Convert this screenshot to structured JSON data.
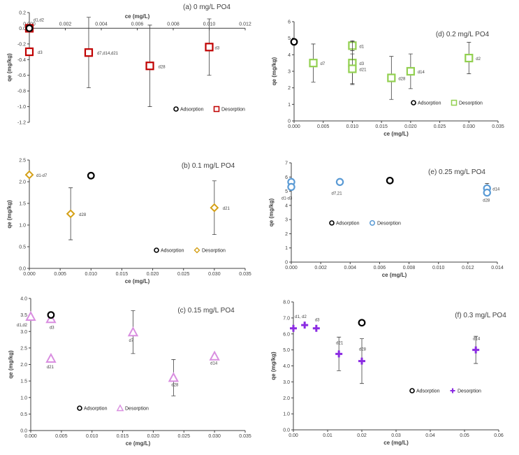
{
  "chart_data": [
    {
      "type": "scatter",
      "title": "(a) 0 mg/L PO4",
      "xlabel": "ce (mg/L)",
      "ylabel": "qe (mg/kg)",
      "xlim": [
        0,
        0.012
      ],
      "ylim": [
        -1.2,
        0.2
      ],
      "xticks": [
        0,
        0.002,
        0.004,
        0.006,
        0.008,
        0.01,
        0.012
      ],
      "yticks": [
        -1.2,
        -1.0,
        -0.8,
        -0.6,
        -0.4,
        -0.2,
        0.0,
        0.2
      ],
      "xtick_labels": [
        "0.000",
        "0.002",
        "0.004",
        "0.006",
        "0.008",
        "0.010",
        "0.012"
      ],
      "ytick_labels": [
        "-1.2",
        "-1.0",
        "-0.8",
        "-0.6",
        "-0.4",
        "-0.2",
        "0.0",
        "0.2"
      ],
      "x_axis_at_zero": true,
      "legend_position": "bottom-right",
      "color": "#c00000",
      "marker": "square",
      "series": [
        {
          "name": "Adsorption",
          "points": [
            {
              "x": 0.0,
              "y": 0.0
            }
          ]
        },
        {
          "name": "Desorption",
          "points": [
            {
              "x": 0.0,
              "y": 0.0,
              "err": 0,
              "label": "d1,d2"
            },
            {
              "x": 0.0,
              "y": -0.3,
              "err": 0,
              "label": "d3"
            },
            {
              "x": 0.0033,
              "y": -0.31,
              "err": 0.45,
              "label": "d7,d14,d21"
            },
            {
              "x": 0.0067,
              "y": -0.48,
              "err": 0.52,
              "label": "d28"
            },
            {
              "x": 0.01,
              "y": -0.24,
              "err": 0.36,
              "label": "d3"
            }
          ]
        }
      ]
    },
    {
      "type": "scatter",
      "title": "(b) 0.1 mg/L PO4",
      "xlabel": "ce (mg/L)",
      "ylabel": "qe (mg/kg)",
      "xlim": [
        0,
        0.035
      ],
      "ylim": [
        0,
        2.5
      ],
      "xticks": [
        0,
        0.005,
        0.01,
        0.015,
        0.02,
        0.025,
        0.03,
        0.035
      ],
      "yticks": [
        0,
        0.5,
        1.0,
        1.5,
        2.0,
        2.5
      ],
      "xtick_labels": [
        "0.000",
        "0.005",
        "0.010",
        "0.015",
        "0.020",
        "0.025",
        "0.030",
        "0.035"
      ],
      "ytick_labels": [
        "0.0",
        "0.5",
        "1.0",
        "1.5",
        "2.0",
        "2.5"
      ],
      "legend_position": "bottom-right",
      "color": "#d4a017",
      "marker": "diamond",
      "series": [
        {
          "name": "Adsorption",
          "points": [
            {
              "x": 0.01,
              "y": 2.14
            }
          ]
        },
        {
          "name": "Desorption",
          "points": [
            {
              "x": 0.0,
              "y": 2.16,
              "err": 0,
              "label": "d1-d7"
            },
            {
              "x": 0.0067,
              "y": 1.26,
              "err": 0.6,
              "label": "d28"
            },
            {
              "x": 0.03,
              "y": 1.4,
              "err": 0.62,
              "label": "d21"
            }
          ]
        }
      ]
    },
    {
      "type": "scatter",
      "title": "(c)  0.15 mg/L PO4",
      "xlabel": "ce (mg/L)",
      "ylabel": "qe (mg/kg)",
      "xlim": [
        0,
        0.035
      ],
      "ylim": [
        0,
        4.0
      ],
      "xticks": [
        0,
        0.005,
        0.01,
        0.015,
        0.02,
        0.025,
        0.03,
        0.035
      ],
      "yticks": [
        0,
        0.5,
        1.0,
        1.5,
        2.0,
        2.5,
        3.0,
        3.5,
        4.0
      ],
      "xtick_labels": [
        "0.000",
        "0.005",
        "0.010",
        "0.015",
        "0.020",
        "0.025",
        "0.030",
        "0.035"
      ],
      "ytick_labels": [
        "0.0",
        "0.5",
        "1.0",
        "1.5",
        "2.0",
        "2.5",
        "3.0",
        "3.5",
        "4.0"
      ],
      "legend_position": "bottom-left",
      "color": "#d98ee0",
      "marker": "triangle",
      "series": [
        {
          "name": "Adsorption",
          "points": [
            {
              "x": 0.0033,
              "y": 3.5
            }
          ]
        },
        {
          "name": "Desorption",
          "points": [
            {
              "x": 0.0,
              "y": 3.45,
              "err": 0,
              "label": "d1,d2"
            },
            {
              "x": 0.0033,
              "y": 3.38,
              "err": 0,
              "label": "d3"
            },
            {
              "x": 0.0033,
              "y": 2.18,
              "err": 0,
              "label": "d21"
            },
            {
              "x": 0.0167,
              "y": 2.98,
              "err": 0.65,
              "label": "d7"
            },
            {
              "x": 0.0233,
              "y": 1.6,
              "err": 0.55,
              "label": "d28"
            },
            {
              "x": 0.03,
              "y": 2.25,
              "err": 0,
              "label": "d14"
            }
          ]
        }
      ]
    },
    {
      "type": "scatter",
      "title": "(d) 0.2 mg/L PO4",
      "xlabel": "ce (mg/L)",
      "ylabel": "qe (mg/kg)",
      "xlim": [
        0,
        0.035
      ],
      "ylim": [
        0,
        6
      ],
      "xticks": [
        0,
        0.005,
        0.01,
        0.015,
        0.02,
        0.025,
        0.03,
        0.035
      ],
      "yticks": [
        0,
        1,
        2,
        3,
        4,
        5,
        6
      ],
      "xtick_labels": [
        "0.000",
        "0.005",
        "0.010",
        "0.015",
        "0.020",
        "0.025",
        "0.030",
        "0.035"
      ],
      "ytick_labels": [
        "0",
        "1",
        "2",
        "3",
        "4",
        "5",
        "6"
      ],
      "legend_position": "bottom-right",
      "color": "#92d050",
      "marker": "square",
      "series": [
        {
          "name": "Adsorption",
          "points": [
            {
              "x": 0.0,
              "y": 4.78
            }
          ]
        },
        {
          "name": "Desorption",
          "points": [
            {
              "x": 0.0033,
              "y": 3.5,
              "err": 1.15,
              "label": "d7"
            },
            {
              "x": 0.01,
              "y": 4.55,
              "err": 0.3,
              "label": "d1"
            },
            {
              "x": 0.01,
              "y": 3.5,
              "err": 1.3,
              "label": "d3"
            },
            {
              "x": 0.01,
              "y": 3.15,
              "err": 0.9,
              "label": "d21"
            },
            {
              "x": 0.0167,
              "y": 2.6,
              "err": 1.3,
              "label": "d28"
            },
            {
              "x": 0.02,
              "y": 3.0,
              "err": 1.05,
              "label": "d14"
            },
            {
              "x": 0.03,
              "y": 3.8,
              "err": 0.95,
              "label": "d2"
            }
          ]
        }
      ]
    },
    {
      "type": "scatter",
      "title": "(e) 0.25 mg/L PO4",
      "xlabel": "ce (mg/L)",
      "ylabel": "qe (mg/kg)",
      "xlim": [
        0,
        0.014
      ],
      "ylim": [
        0,
        7
      ],
      "xticks": [
        0,
        0.002,
        0.004,
        0.006,
        0.008,
        0.01,
        0.012,
        0.014
      ],
      "yticks": [
        0,
        1,
        2,
        3,
        4,
        5,
        6,
        7
      ],
      "xtick_labels": [
        "0.000",
        "0.002",
        "0.004",
        "0.006",
        "0.008",
        "0.010",
        "0.012",
        "0.014"
      ],
      "ytick_labels": [
        "0",
        "1",
        "2",
        "3",
        "4",
        "5",
        "6",
        "7"
      ],
      "legend_position": "middle",
      "color": "#5b9bd5",
      "marker": "circle",
      "series": [
        {
          "name": "Adsorption",
          "points": [
            {
              "x": 0.0067,
              "y": 5.75
            }
          ]
        },
        {
          "name": "Desorption",
          "points": [
            {
              "x": 0.0,
              "y": 5.65,
              "err": 0,
              "label": ""
            },
            {
              "x": 0.0,
              "y": 5.3,
              "err": 0,
              "label": "d1-d3"
            },
            {
              "x": 0.0033,
              "y": 5.65,
              "err": 0,
              "label": "d7,21"
            },
            {
              "x": 0.0133,
              "y": 5.2,
              "err": 0.35,
              "label": "d14"
            },
            {
              "x": 0.0133,
              "y": 4.9,
              "err": 0,
              "label": "d28"
            }
          ]
        }
      ]
    },
    {
      "type": "scatter",
      "title": "(f) 0.3 mg/L PO4",
      "xlabel": "ce (mg/L)",
      "ylabel": "qe (mg/kg)",
      "xlim": [
        0,
        0.06
      ],
      "ylim": [
        0,
        8
      ],
      "xticks": [
        0,
        0.01,
        0.02,
        0.03,
        0.04,
        0.05,
        0.06
      ],
      "yticks": [
        0,
        1,
        2,
        3,
        4,
        5,
        6,
        7,
        8
      ],
      "xtick_labels": [
        "0.00",
        "0.01",
        "0.02",
        "0.03",
        "0.04",
        "0.05",
        "0.06"
      ],
      "ytick_labels": [
        "0.0",
        "1.0",
        "2.0",
        "3.0",
        "4.0",
        "5.0",
        "6.0",
        "7.0",
        "8.0"
      ],
      "legend_position": "bottom-right",
      "color": "#8b2be2",
      "marker": "plus",
      "series": [
        {
          "name": "Adsorption",
          "points": [
            {
              "x": 0.02,
              "y": 6.7
            }
          ]
        },
        {
          "name": "Desorption",
          "points": [
            {
              "x": 0.0,
              "y": 6.35,
              "err": 0,
              "label": ""
            },
            {
              "x": 0.0033,
              "y": 6.55,
              "err": 0,
              "label": "d1, d2"
            },
            {
              "x": 0.0067,
              "y": 6.35,
              "err": 0,
              "label": "d3"
            },
            {
              "x": 0.0133,
              "y": 4.75,
              "err": 1.05,
              "label": "d21"
            },
            {
              "x": 0.02,
              "y": 4.3,
              "err": 1.4,
              "label": "d28"
            },
            {
              "x": 0.0533,
              "y": 5.0,
              "err": 0.85,
              "label": "d14"
            }
          ]
        }
      ]
    }
  ]
}
